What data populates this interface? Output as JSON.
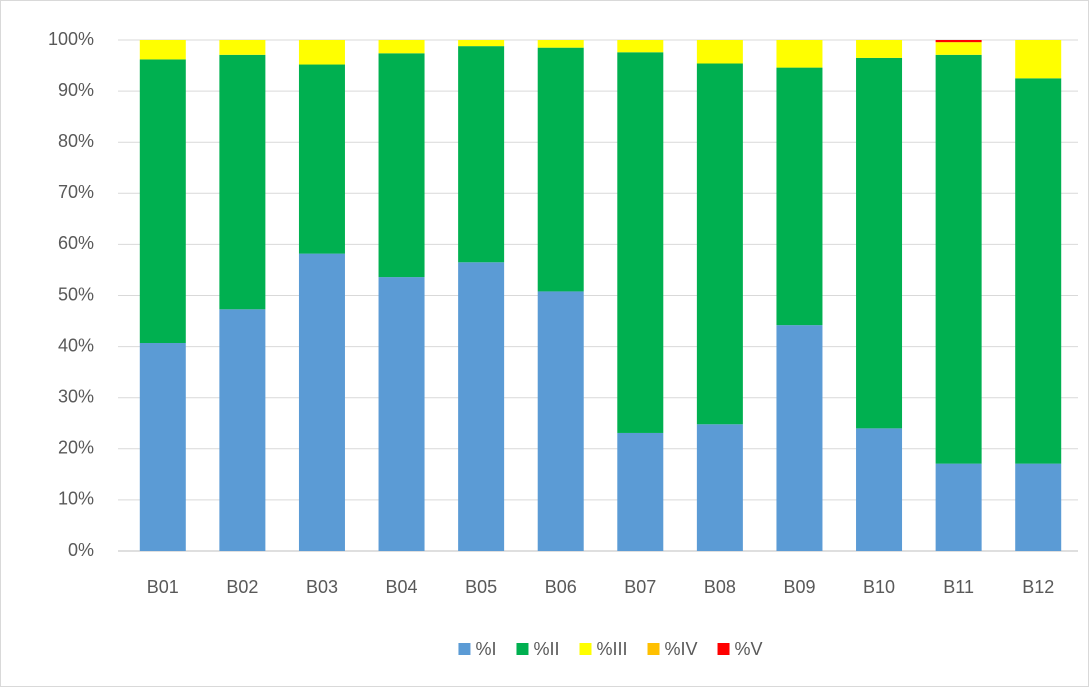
{
  "chart_data": {
    "type": "stacked_bar_percent",
    "categories": [
      "B01",
      "B02",
      "B03",
      "B04",
      "B05",
      "B06",
      "B07",
      "B08",
      "B09",
      "B10",
      "B11",
      "B12"
    ],
    "series": [
      {
        "name": "%I",
        "color": "#5b9bd5",
        "values": [
          40.7,
          47.3,
          58.2,
          53.6,
          56.5,
          50.8,
          23.1,
          24.8,
          44.2,
          24.0,
          17.1,
          17.1
        ]
      },
      {
        "name": "%II",
        "color": "#00b050",
        "values": [
          55.5,
          49.8,
          37.0,
          43.8,
          42.3,
          47.7,
          74.5,
          70.6,
          50.4,
          72.5,
          80.0,
          75.4
        ]
      },
      {
        "name": "%III",
        "color": "#ffff00",
        "values": [
          3.8,
          2.9,
          4.8,
          2.6,
          1.2,
          1.5,
          2.4,
          4.6,
          5.4,
          3.5,
          2.4,
          7.5
        ]
      },
      {
        "name": "%IV",
        "color": "#ffc000",
        "values": [
          0,
          0,
          0,
          0,
          0,
          0,
          0,
          0,
          0,
          0,
          0.1,
          0
        ]
      },
      {
        "name": "%V",
        "color": "#ff0000",
        "values": [
          0,
          0,
          0,
          0,
          0,
          0,
          0,
          0,
          0,
          0,
          0.4,
          0
        ]
      }
    ],
    "ylim": [
      0,
      100
    ],
    "yticks": [
      {
        "value": 0,
        "label": "0%"
      },
      {
        "value": 10,
        "label": "10%"
      },
      {
        "value": 20,
        "label": "20%"
      },
      {
        "value": 30,
        "label": "30%"
      },
      {
        "value": 40,
        "label": "40%"
      },
      {
        "value": 50,
        "label": "50%"
      },
      {
        "value": 60,
        "label": "60%"
      },
      {
        "value": 70,
        "label": "70%"
      },
      {
        "value": 80,
        "label": "80%"
      },
      {
        "value": 90,
        "label": "90%"
      },
      {
        "value": 100,
        "label": "100%"
      }
    ],
    "grid": true,
    "legend": "bottom"
  }
}
